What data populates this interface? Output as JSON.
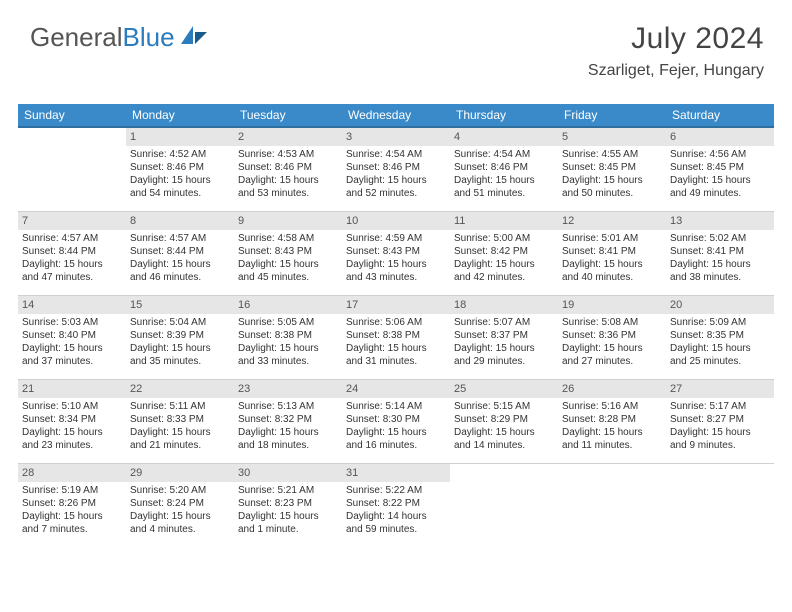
{
  "brand": {
    "part1": "General",
    "part2": "Blue"
  },
  "header": {
    "month_year": "July 2024",
    "location": "Szarliget, Fejer, Hungary"
  },
  "colors": {
    "header_bg": "#3a8ac9",
    "header_border": "#2f6fa0",
    "daynum_bg": "#e6e6e6",
    "text": "#333333",
    "brand_blue": "#2b7bbf"
  },
  "weekdays": [
    "Sunday",
    "Monday",
    "Tuesday",
    "Wednesday",
    "Thursday",
    "Friday",
    "Saturday"
  ],
  "weeks": [
    [
      null,
      {
        "n": "1",
        "sr": "Sunrise: 4:52 AM",
        "ss": "Sunset: 8:46 PM",
        "dl1": "Daylight: 15 hours",
        "dl2": "and 54 minutes."
      },
      {
        "n": "2",
        "sr": "Sunrise: 4:53 AM",
        "ss": "Sunset: 8:46 PM",
        "dl1": "Daylight: 15 hours",
        "dl2": "and 53 minutes."
      },
      {
        "n": "3",
        "sr": "Sunrise: 4:54 AM",
        "ss": "Sunset: 8:46 PM",
        "dl1": "Daylight: 15 hours",
        "dl2": "and 52 minutes."
      },
      {
        "n": "4",
        "sr": "Sunrise: 4:54 AM",
        "ss": "Sunset: 8:46 PM",
        "dl1": "Daylight: 15 hours",
        "dl2": "and 51 minutes."
      },
      {
        "n": "5",
        "sr": "Sunrise: 4:55 AM",
        "ss": "Sunset: 8:45 PM",
        "dl1": "Daylight: 15 hours",
        "dl2": "and 50 minutes."
      },
      {
        "n": "6",
        "sr": "Sunrise: 4:56 AM",
        "ss": "Sunset: 8:45 PM",
        "dl1": "Daylight: 15 hours",
        "dl2": "and 49 minutes."
      }
    ],
    [
      {
        "n": "7",
        "sr": "Sunrise: 4:57 AM",
        "ss": "Sunset: 8:44 PM",
        "dl1": "Daylight: 15 hours",
        "dl2": "and 47 minutes."
      },
      {
        "n": "8",
        "sr": "Sunrise: 4:57 AM",
        "ss": "Sunset: 8:44 PM",
        "dl1": "Daylight: 15 hours",
        "dl2": "and 46 minutes."
      },
      {
        "n": "9",
        "sr": "Sunrise: 4:58 AM",
        "ss": "Sunset: 8:43 PM",
        "dl1": "Daylight: 15 hours",
        "dl2": "and 45 minutes."
      },
      {
        "n": "10",
        "sr": "Sunrise: 4:59 AM",
        "ss": "Sunset: 8:43 PM",
        "dl1": "Daylight: 15 hours",
        "dl2": "and 43 minutes."
      },
      {
        "n": "11",
        "sr": "Sunrise: 5:00 AM",
        "ss": "Sunset: 8:42 PM",
        "dl1": "Daylight: 15 hours",
        "dl2": "and 42 minutes."
      },
      {
        "n": "12",
        "sr": "Sunrise: 5:01 AM",
        "ss": "Sunset: 8:41 PM",
        "dl1": "Daylight: 15 hours",
        "dl2": "and 40 minutes."
      },
      {
        "n": "13",
        "sr": "Sunrise: 5:02 AM",
        "ss": "Sunset: 8:41 PM",
        "dl1": "Daylight: 15 hours",
        "dl2": "and 38 minutes."
      }
    ],
    [
      {
        "n": "14",
        "sr": "Sunrise: 5:03 AM",
        "ss": "Sunset: 8:40 PM",
        "dl1": "Daylight: 15 hours",
        "dl2": "and 37 minutes."
      },
      {
        "n": "15",
        "sr": "Sunrise: 5:04 AM",
        "ss": "Sunset: 8:39 PM",
        "dl1": "Daylight: 15 hours",
        "dl2": "and 35 minutes."
      },
      {
        "n": "16",
        "sr": "Sunrise: 5:05 AM",
        "ss": "Sunset: 8:38 PM",
        "dl1": "Daylight: 15 hours",
        "dl2": "and 33 minutes."
      },
      {
        "n": "17",
        "sr": "Sunrise: 5:06 AM",
        "ss": "Sunset: 8:38 PM",
        "dl1": "Daylight: 15 hours",
        "dl2": "and 31 minutes."
      },
      {
        "n": "18",
        "sr": "Sunrise: 5:07 AM",
        "ss": "Sunset: 8:37 PM",
        "dl1": "Daylight: 15 hours",
        "dl2": "and 29 minutes."
      },
      {
        "n": "19",
        "sr": "Sunrise: 5:08 AM",
        "ss": "Sunset: 8:36 PM",
        "dl1": "Daylight: 15 hours",
        "dl2": "and 27 minutes."
      },
      {
        "n": "20",
        "sr": "Sunrise: 5:09 AM",
        "ss": "Sunset: 8:35 PM",
        "dl1": "Daylight: 15 hours",
        "dl2": "and 25 minutes."
      }
    ],
    [
      {
        "n": "21",
        "sr": "Sunrise: 5:10 AM",
        "ss": "Sunset: 8:34 PM",
        "dl1": "Daylight: 15 hours",
        "dl2": "and 23 minutes."
      },
      {
        "n": "22",
        "sr": "Sunrise: 5:11 AM",
        "ss": "Sunset: 8:33 PM",
        "dl1": "Daylight: 15 hours",
        "dl2": "and 21 minutes."
      },
      {
        "n": "23",
        "sr": "Sunrise: 5:13 AM",
        "ss": "Sunset: 8:32 PM",
        "dl1": "Daylight: 15 hours",
        "dl2": "and 18 minutes."
      },
      {
        "n": "24",
        "sr": "Sunrise: 5:14 AM",
        "ss": "Sunset: 8:30 PM",
        "dl1": "Daylight: 15 hours",
        "dl2": "and 16 minutes."
      },
      {
        "n": "25",
        "sr": "Sunrise: 5:15 AM",
        "ss": "Sunset: 8:29 PM",
        "dl1": "Daylight: 15 hours",
        "dl2": "and 14 minutes."
      },
      {
        "n": "26",
        "sr": "Sunrise: 5:16 AM",
        "ss": "Sunset: 8:28 PM",
        "dl1": "Daylight: 15 hours",
        "dl2": "and 11 minutes."
      },
      {
        "n": "27",
        "sr": "Sunrise: 5:17 AM",
        "ss": "Sunset: 8:27 PM",
        "dl1": "Daylight: 15 hours",
        "dl2": "and 9 minutes."
      }
    ],
    [
      {
        "n": "28",
        "sr": "Sunrise: 5:19 AM",
        "ss": "Sunset: 8:26 PM",
        "dl1": "Daylight: 15 hours",
        "dl2": "and 7 minutes."
      },
      {
        "n": "29",
        "sr": "Sunrise: 5:20 AM",
        "ss": "Sunset: 8:24 PM",
        "dl1": "Daylight: 15 hours",
        "dl2": "and 4 minutes."
      },
      {
        "n": "30",
        "sr": "Sunrise: 5:21 AM",
        "ss": "Sunset: 8:23 PM",
        "dl1": "Daylight: 15 hours",
        "dl2": "and 1 minute."
      },
      {
        "n": "31",
        "sr": "Sunrise: 5:22 AM",
        "ss": "Sunset: 8:22 PM",
        "dl1": "Daylight: 14 hours",
        "dl2": "and 59 minutes."
      },
      null,
      null,
      null
    ]
  ]
}
